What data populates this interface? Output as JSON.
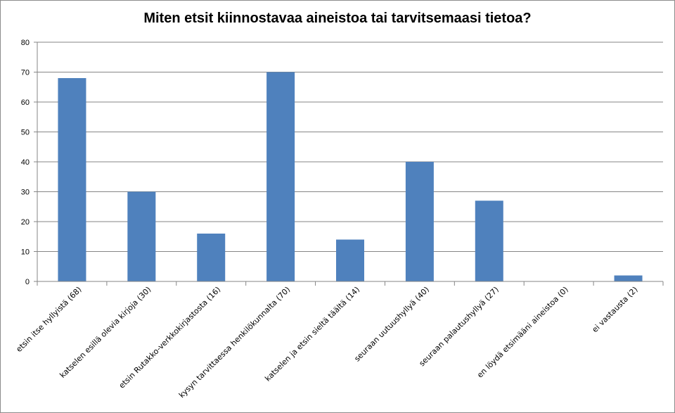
{
  "chart_data": {
    "type": "bar",
    "title": "Miten etsit kiinnostavaa aineistoa tai tarvitsemaasi tietoa?",
    "categories": [
      "etsin itse hyllyistä (68)",
      "katselen esillä olevia kirjoja (30)",
      "etsin Rutakko-verkkokirjastosta (16)",
      "kysyn tarvittaessa henkilökunnalta (70)",
      "katselen ja etsin sieltä täältä (14)",
      "seuraan uutuushyllyä (40)",
      "seuraan palautushyllyä (27)",
      "en löydä etsimääni aineistoa (0)",
      "ei vastausta (2)"
    ],
    "values": [
      68,
      30,
      16,
      70,
      14,
      40,
      27,
      0,
      2
    ],
    "ylim": [
      0,
      80
    ],
    "yticks": [
      0,
      10,
      20,
      30,
      40,
      50,
      60,
      70,
      80
    ],
    "grid": true,
    "legend": "none",
    "bar_color": "#4f81bd"
  }
}
